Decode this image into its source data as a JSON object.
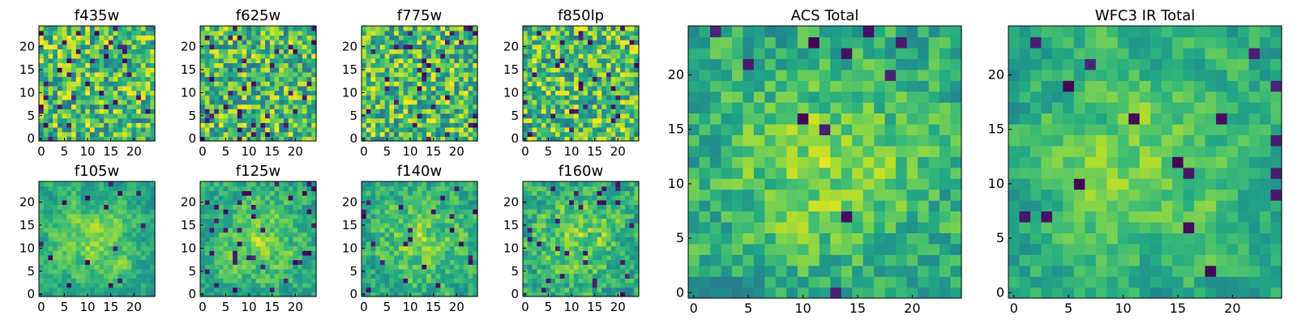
{
  "chart_data": [
    {
      "type": "heatmap",
      "title": "f435w",
      "grid_size": 25,
      "seed": 11,
      "smoothness": 0.0,
      "dark_fraction": 0.06,
      "x_ticks": [
        0,
        5,
        10,
        15,
        20
      ],
      "y_ticks": [
        0,
        5,
        10,
        15,
        20
      ],
      "xlim": [
        0,
        24
      ],
      "ylim": [
        0,
        24
      ],
      "colormap": "viridis"
    },
    {
      "type": "heatmap",
      "title": "f625w",
      "grid_size": 25,
      "seed": 23,
      "smoothness": 0.0,
      "dark_fraction": 0.05,
      "x_ticks": [
        0,
        5,
        10,
        15,
        20
      ],
      "y_ticks": [
        0,
        5,
        10,
        15,
        20
      ],
      "xlim": [
        0,
        24
      ],
      "ylim": [
        0,
        24
      ],
      "colormap": "viridis"
    },
    {
      "type": "heatmap",
      "title": "f775w",
      "grid_size": 25,
      "seed": 37,
      "smoothness": 0.0,
      "dark_fraction": 0.05,
      "x_ticks": [
        0,
        5,
        10,
        15,
        20
      ],
      "y_ticks": [
        0,
        5,
        10,
        15,
        20
      ],
      "xlim": [
        0,
        24
      ],
      "ylim": [
        0,
        24
      ],
      "colormap": "viridis"
    },
    {
      "type": "heatmap",
      "title": "f850lp",
      "grid_size": 25,
      "seed": 41,
      "smoothness": 0.0,
      "dark_fraction": 0.05,
      "x_ticks": [
        0,
        5,
        10,
        15,
        20
      ],
      "y_ticks": [
        0,
        5,
        10,
        15,
        20
      ],
      "xlim": [
        0,
        24
      ],
      "ylim": [
        0,
        24
      ],
      "colormap": "viridis"
    },
    {
      "type": "heatmap",
      "title": "f105w",
      "grid_size": 25,
      "seed": 53,
      "smoothness": 0.6,
      "dark_fraction": 0.03,
      "x_ticks": [
        0,
        5,
        10,
        15,
        20
      ],
      "y_ticks": [
        0,
        5,
        10,
        15,
        20
      ],
      "xlim": [
        0,
        24
      ],
      "ylim": [
        0,
        24
      ],
      "colormap": "viridis"
    },
    {
      "type": "heatmap",
      "title": "f125w",
      "grid_size": 25,
      "seed": 67,
      "smoothness": 0.5,
      "dark_fraction": 0.04,
      "x_ticks": [
        0,
        5,
        10,
        15,
        20
      ],
      "y_ticks": [
        0,
        5,
        10,
        15,
        20
      ],
      "xlim": [
        0,
        24
      ],
      "ylim": [
        0,
        24
      ],
      "colormap": "viridis"
    },
    {
      "type": "heatmap",
      "title": "f140w",
      "grid_size": 25,
      "seed": 79,
      "smoothness": 0.4,
      "dark_fraction": 0.05,
      "x_ticks": [
        0,
        5,
        10,
        15,
        20
      ],
      "y_ticks": [
        0,
        5,
        10,
        15,
        20
      ],
      "xlim": [
        0,
        24
      ],
      "ylim": [
        0,
        24
      ],
      "colormap": "viridis"
    },
    {
      "type": "heatmap",
      "title": "f160w",
      "grid_size": 25,
      "seed": 83,
      "smoothness": 0.3,
      "dark_fraction": 0.05,
      "x_ticks": [
        0,
        5,
        10,
        15,
        20
      ],
      "y_ticks": [
        0,
        5,
        10,
        15,
        20
      ],
      "xlim": [
        0,
        24
      ],
      "ylim": [
        0,
        24
      ],
      "colormap": "viridis"
    },
    {
      "type": "heatmap",
      "title": "ACS Total",
      "grid_size": 25,
      "seed": 97,
      "smoothness": 0.35,
      "dark_fraction": 0.02,
      "x_ticks": [
        0,
        5,
        10,
        15,
        20
      ],
      "y_ticks": [
        0,
        5,
        10,
        15,
        20
      ],
      "xlim": [
        0,
        24
      ],
      "ylim": [
        0,
        24
      ],
      "colormap": "viridis"
    },
    {
      "type": "heatmap",
      "title": "WFC3 IR Total",
      "grid_size": 25,
      "seed": 101,
      "smoothness": 0.55,
      "dark_fraction": 0.03,
      "x_ticks": [
        0,
        5,
        10,
        15,
        20
      ],
      "y_ticks": [
        0,
        5,
        10,
        15,
        20
      ],
      "xlim": [
        0,
        24
      ],
      "ylim": [
        0,
        24
      ],
      "colormap": "viridis"
    }
  ]
}
